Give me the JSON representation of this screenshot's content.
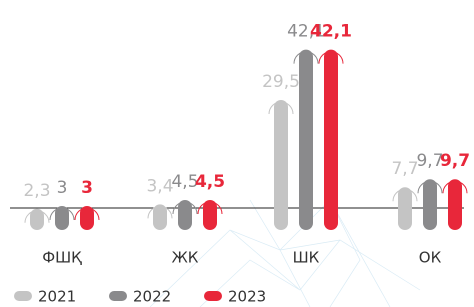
{
  "chart_data": {
    "type": "bar",
    "categories": [
      "ФШҚ",
      "ЖК",
      "ШК",
      "ОК"
    ],
    "series": [
      {
        "name": "2021",
        "color": "#c4c4c4",
        "values": [
          2.3,
          3.4,
          29.5,
          7.7
        ],
        "value_labels": [
          "2,3",
          "3,4",
          "29,5",
          "7,7"
        ]
      },
      {
        "name": "2022",
        "color": "#8a8a8c",
        "values": [
          3,
          4.5,
          42.1,
          9.7
        ],
        "value_labels": [
          "3",
          "4,5",
          "42,1",
          "9,7"
        ]
      },
      {
        "name": "2023",
        "color": "#e8273a",
        "values": [
          3,
          4.5,
          42.1,
          9.7
        ],
        "value_labels": [
          "3",
          "4,5",
          "42,1",
          "9,7"
        ]
      }
    ]
  }
}
